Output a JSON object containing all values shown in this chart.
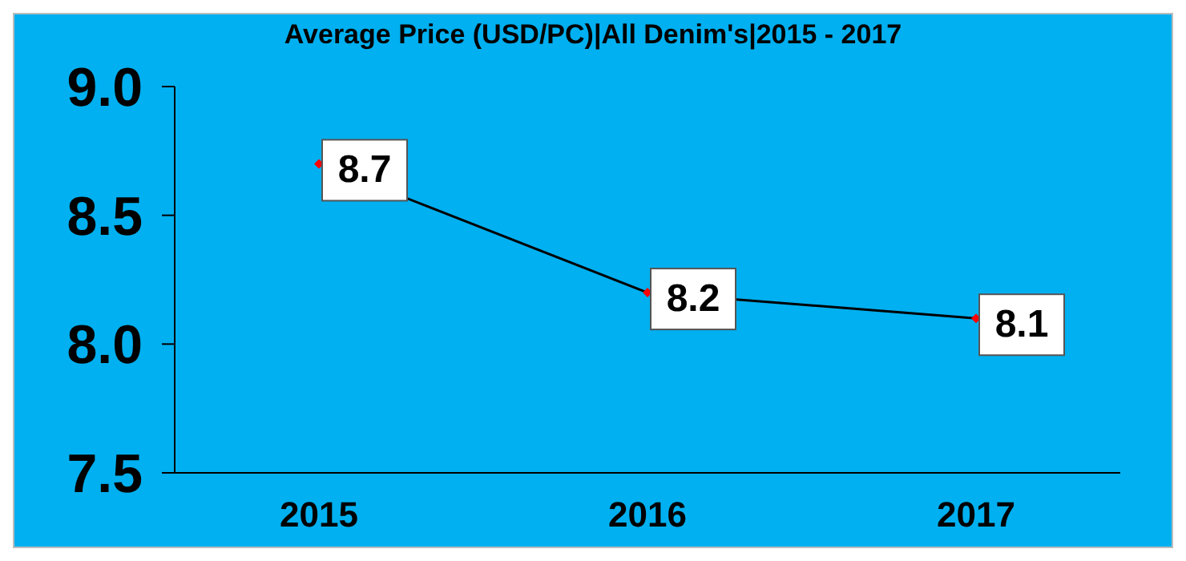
{
  "chart_data": {
    "type": "line",
    "title": "Average Price (USD/PC)|All Denim's|2015 - 2017",
    "categories": [
      "2015",
      "2016",
      "2017"
    ],
    "series": [
      {
        "color": "#000000",
        "values": [
          8.7,
          8.2,
          8.1
        ]
      }
    ],
    "ylim": [
      7.5,
      9.0
    ],
    "yticks": [
      {
        "value": 7.5,
        "label": "7.5"
      },
      {
        "value": 8.0,
        "label": "8.0"
      },
      {
        "value": 8.5,
        "label": "8.5"
      },
      {
        "value": 9.0,
        "label": "9.0"
      }
    ],
    "grid": false,
    "legend": false,
    "marker": "diamond",
    "line_style": "solid",
    "data_labels": true
  }
}
